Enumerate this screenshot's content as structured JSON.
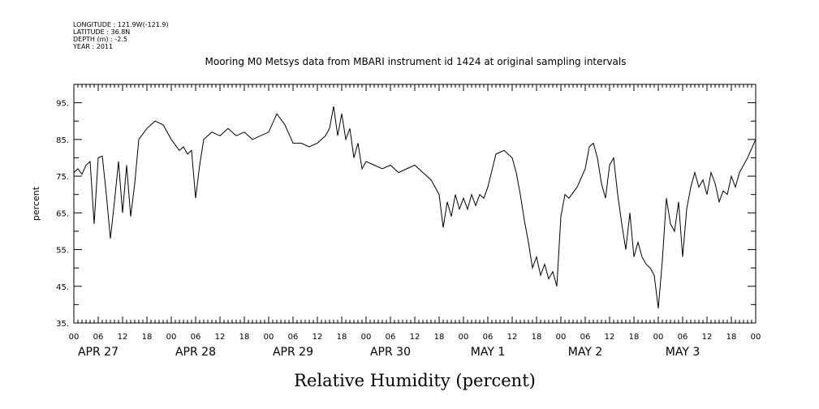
{
  "header": {
    "longitude": "LONGITUDE : 121.9W(-121.9)",
    "latitude": "LATITUDE : 36.8N",
    "depth": "DEPTH (m) : -2.5",
    "year": "YEAR : 2011"
  },
  "chart_data": {
    "type": "line",
    "title": "Mooring M0 Metsys data from MBARI instrument id 1424 at original sampling intervals",
    "xlabel": "Relative Humidity (percent)",
    "ylabel": "percent",
    "x_start": "2011-04-27 00:00",
    "x_end": "2011-05-04 00:00",
    "x_hour_ticks": [
      "00",
      "06",
      "12",
      "18",
      "00",
      "06",
      "12",
      "18",
      "00",
      "06",
      "12",
      "18",
      "00",
      "06",
      "12",
      "18",
      "00",
      "06",
      "12",
      "18",
      "00",
      "06",
      "12",
      "18",
      "00",
      "06",
      "12",
      "18",
      "00"
    ],
    "x_day_labels": [
      "APR 27",
      "APR 28",
      "APR 29",
      "APR 30",
      "MAY  1",
      "MAY  2",
      "MAY  3"
    ],
    "ylim": [
      35,
      100
    ],
    "y_ticks": [
      35,
      45,
      55,
      65,
      75,
      85,
      95
    ],
    "y_tick_labels": [
      "35.",
      "45.",
      "55.",
      "65.",
      "75.",
      "85.",
      "95."
    ],
    "grid": false,
    "series": [
      {
        "values": [
          [
            "2011-04-27 00:00",
            76
          ],
          [
            "2011-04-27 01:00",
            77
          ],
          [
            "2011-04-27 02:00",
            75.5
          ],
          [
            "2011-04-27 03:00",
            78
          ],
          [
            "2011-04-27 04:00",
            79
          ],
          [
            "2011-04-27 05:00",
            62
          ],
          [
            "2011-04-27 06:00",
            80
          ],
          [
            "2011-04-27 07:00",
            80.5
          ],
          [
            "2011-04-27 08:00",
            70
          ],
          [
            "2011-04-27 09:00",
            58
          ],
          [
            "2011-04-27 10:00",
            68
          ],
          [
            "2011-04-27 11:00",
            79
          ],
          [
            "2011-04-27 12:00",
            65
          ],
          [
            "2011-04-27 13:00",
            78
          ],
          [
            "2011-04-27 14:00",
            64
          ],
          [
            "2011-04-27 15:00",
            73
          ],
          [
            "2011-04-27 16:00",
            85
          ],
          [
            "2011-04-27 18:00",
            88
          ],
          [
            "2011-04-27 20:00",
            90
          ],
          [
            "2011-04-27 22:00",
            89
          ],
          [
            "2011-04-28 00:00",
            85
          ],
          [
            "2011-04-28 02:00",
            82
          ],
          [
            "2011-04-28 03:00",
            83
          ],
          [
            "2011-04-28 04:00",
            81
          ],
          [
            "2011-04-28 05:00",
            82
          ],
          [
            "2011-04-28 06:00",
            69
          ],
          [
            "2011-04-28 07:00",
            78
          ],
          [
            "2011-04-28 08:00",
            85
          ],
          [
            "2011-04-28 10:00",
            87
          ],
          [
            "2011-04-28 12:00",
            86
          ],
          [
            "2011-04-28 14:00",
            88
          ],
          [
            "2011-04-28 16:00",
            86
          ],
          [
            "2011-04-28 18:00",
            87
          ],
          [
            "2011-04-28 20:00",
            85
          ],
          [
            "2011-04-28 22:00",
            86
          ],
          [
            "2011-04-29 00:00",
            87
          ],
          [
            "2011-04-29 02:00",
            92
          ],
          [
            "2011-04-29 04:00",
            89
          ],
          [
            "2011-04-29 06:00",
            84
          ],
          [
            "2011-04-29 08:00",
            84
          ],
          [
            "2011-04-29 10:00",
            83
          ],
          [
            "2011-04-29 12:00",
            84
          ],
          [
            "2011-04-29 14:00",
            86
          ],
          [
            "2011-04-29 15:00",
            88
          ],
          [
            "2011-04-29 16:00",
            94
          ],
          [
            "2011-04-29 17:00",
            86
          ],
          [
            "2011-04-29 18:00",
            92
          ],
          [
            "2011-04-29 19:00",
            85
          ],
          [
            "2011-04-29 20:00",
            88
          ],
          [
            "2011-04-29 21:00",
            80
          ],
          [
            "2011-04-29 22:00",
            84
          ],
          [
            "2011-04-29 23:00",
            77
          ],
          [
            "2011-04-30 00:00",
            79
          ],
          [
            "2011-04-30 02:00",
            78
          ],
          [
            "2011-04-30 04:00",
            77
          ],
          [
            "2011-04-30 06:00",
            78
          ],
          [
            "2011-04-30 08:00",
            76
          ],
          [
            "2011-04-30 10:00",
            77
          ],
          [
            "2011-04-30 12:00",
            78
          ],
          [
            "2011-04-30 14:00",
            76
          ],
          [
            "2011-04-30 16:00",
            74
          ],
          [
            "2011-04-30 17:00",
            72
          ],
          [
            "2011-04-30 18:00",
            70
          ],
          [
            "2011-04-30 19:00",
            61
          ],
          [
            "2011-04-30 20:00",
            68
          ],
          [
            "2011-04-30 21:00",
            64
          ],
          [
            "2011-04-30 22:00",
            70
          ],
          [
            "2011-04-30 23:00",
            66
          ],
          [
            "2011-05-01 00:00",
            69
          ],
          [
            "2011-05-01 01:00",
            66
          ],
          [
            "2011-05-01 02:00",
            70
          ],
          [
            "2011-05-01 03:00",
            67
          ],
          [
            "2011-05-01 04:00",
            70
          ],
          [
            "2011-05-01 05:00",
            69
          ],
          [
            "2011-05-01 06:00",
            72
          ],
          [
            "2011-05-01 08:00",
            81
          ],
          [
            "2011-05-01 10:00",
            82
          ],
          [
            "2011-05-01 12:00",
            80
          ],
          [
            "2011-05-01 13:00",
            76
          ],
          [
            "2011-05-01 14:00",
            70
          ],
          [
            "2011-05-01 15:00",
            63
          ],
          [
            "2011-05-01 16:00",
            57
          ],
          [
            "2011-05-01 17:00",
            50
          ],
          [
            "2011-05-01 18:00",
            53
          ],
          [
            "2011-05-01 19:00",
            48
          ],
          [
            "2011-05-01 20:00",
            51
          ],
          [
            "2011-05-01 21:00",
            47
          ],
          [
            "2011-05-01 22:00",
            49
          ],
          [
            "2011-05-01 23:00",
            45
          ],
          [
            "2011-05-02 00:00",
            64
          ],
          [
            "2011-05-02 01:00",
            70
          ],
          [
            "2011-05-02 02:00",
            69
          ],
          [
            "2011-05-02 04:00",
            72
          ],
          [
            "2011-05-02 06:00",
            77
          ],
          [
            "2011-05-02 07:00",
            83
          ],
          [
            "2011-05-02 08:00",
            84
          ],
          [
            "2011-05-02 09:00",
            80
          ],
          [
            "2011-05-02 10:00",
            73
          ],
          [
            "2011-05-02 11:00",
            69
          ],
          [
            "2011-05-02 12:00",
            78
          ],
          [
            "2011-05-02 13:00",
            80
          ],
          [
            "2011-05-02 14:00",
            70
          ],
          [
            "2011-05-02 15:00",
            62
          ],
          [
            "2011-05-02 16:00",
            55
          ],
          [
            "2011-05-02 17:00",
            65
          ],
          [
            "2011-05-02 18:00",
            53
          ],
          [
            "2011-05-02 19:00",
            57
          ],
          [
            "2011-05-02 20:00",
            53
          ],
          [
            "2011-05-02 21:00",
            51
          ],
          [
            "2011-05-02 22:00",
            50
          ],
          [
            "2011-05-02 23:00",
            48
          ],
          [
            "2011-05-03 00:00",
            39
          ],
          [
            "2011-05-03 01:00",
            52
          ],
          [
            "2011-05-03 02:00",
            69
          ],
          [
            "2011-05-03 03:00",
            62
          ],
          [
            "2011-05-03 04:00",
            60
          ],
          [
            "2011-05-03 05:00",
            68
          ],
          [
            "2011-05-03 06:00",
            53
          ],
          [
            "2011-05-03 07:00",
            66
          ],
          [
            "2011-05-03 08:00",
            72
          ],
          [
            "2011-05-03 09:00",
            76
          ],
          [
            "2011-05-03 10:00",
            72
          ],
          [
            "2011-05-03 11:00",
            74
          ],
          [
            "2011-05-03 12:00",
            70
          ],
          [
            "2011-05-03 13:00",
            76
          ],
          [
            "2011-05-03 14:00",
            73
          ],
          [
            "2011-05-03 15:00",
            68
          ],
          [
            "2011-05-03 16:00",
            71
          ],
          [
            "2011-05-03 17:00",
            70
          ],
          [
            "2011-05-03 18:00",
            75
          ],
          [
            "2011-05-03 19:00",
            72
          ],
          [
            "2011-05-03 20:00",
            76
          ],
          [
            "2011-05-03 22:00",
            80
          ],
          [
            "2011-05-04 00:00",
            85
          ]
        ]
      }
    ]
  }
}
